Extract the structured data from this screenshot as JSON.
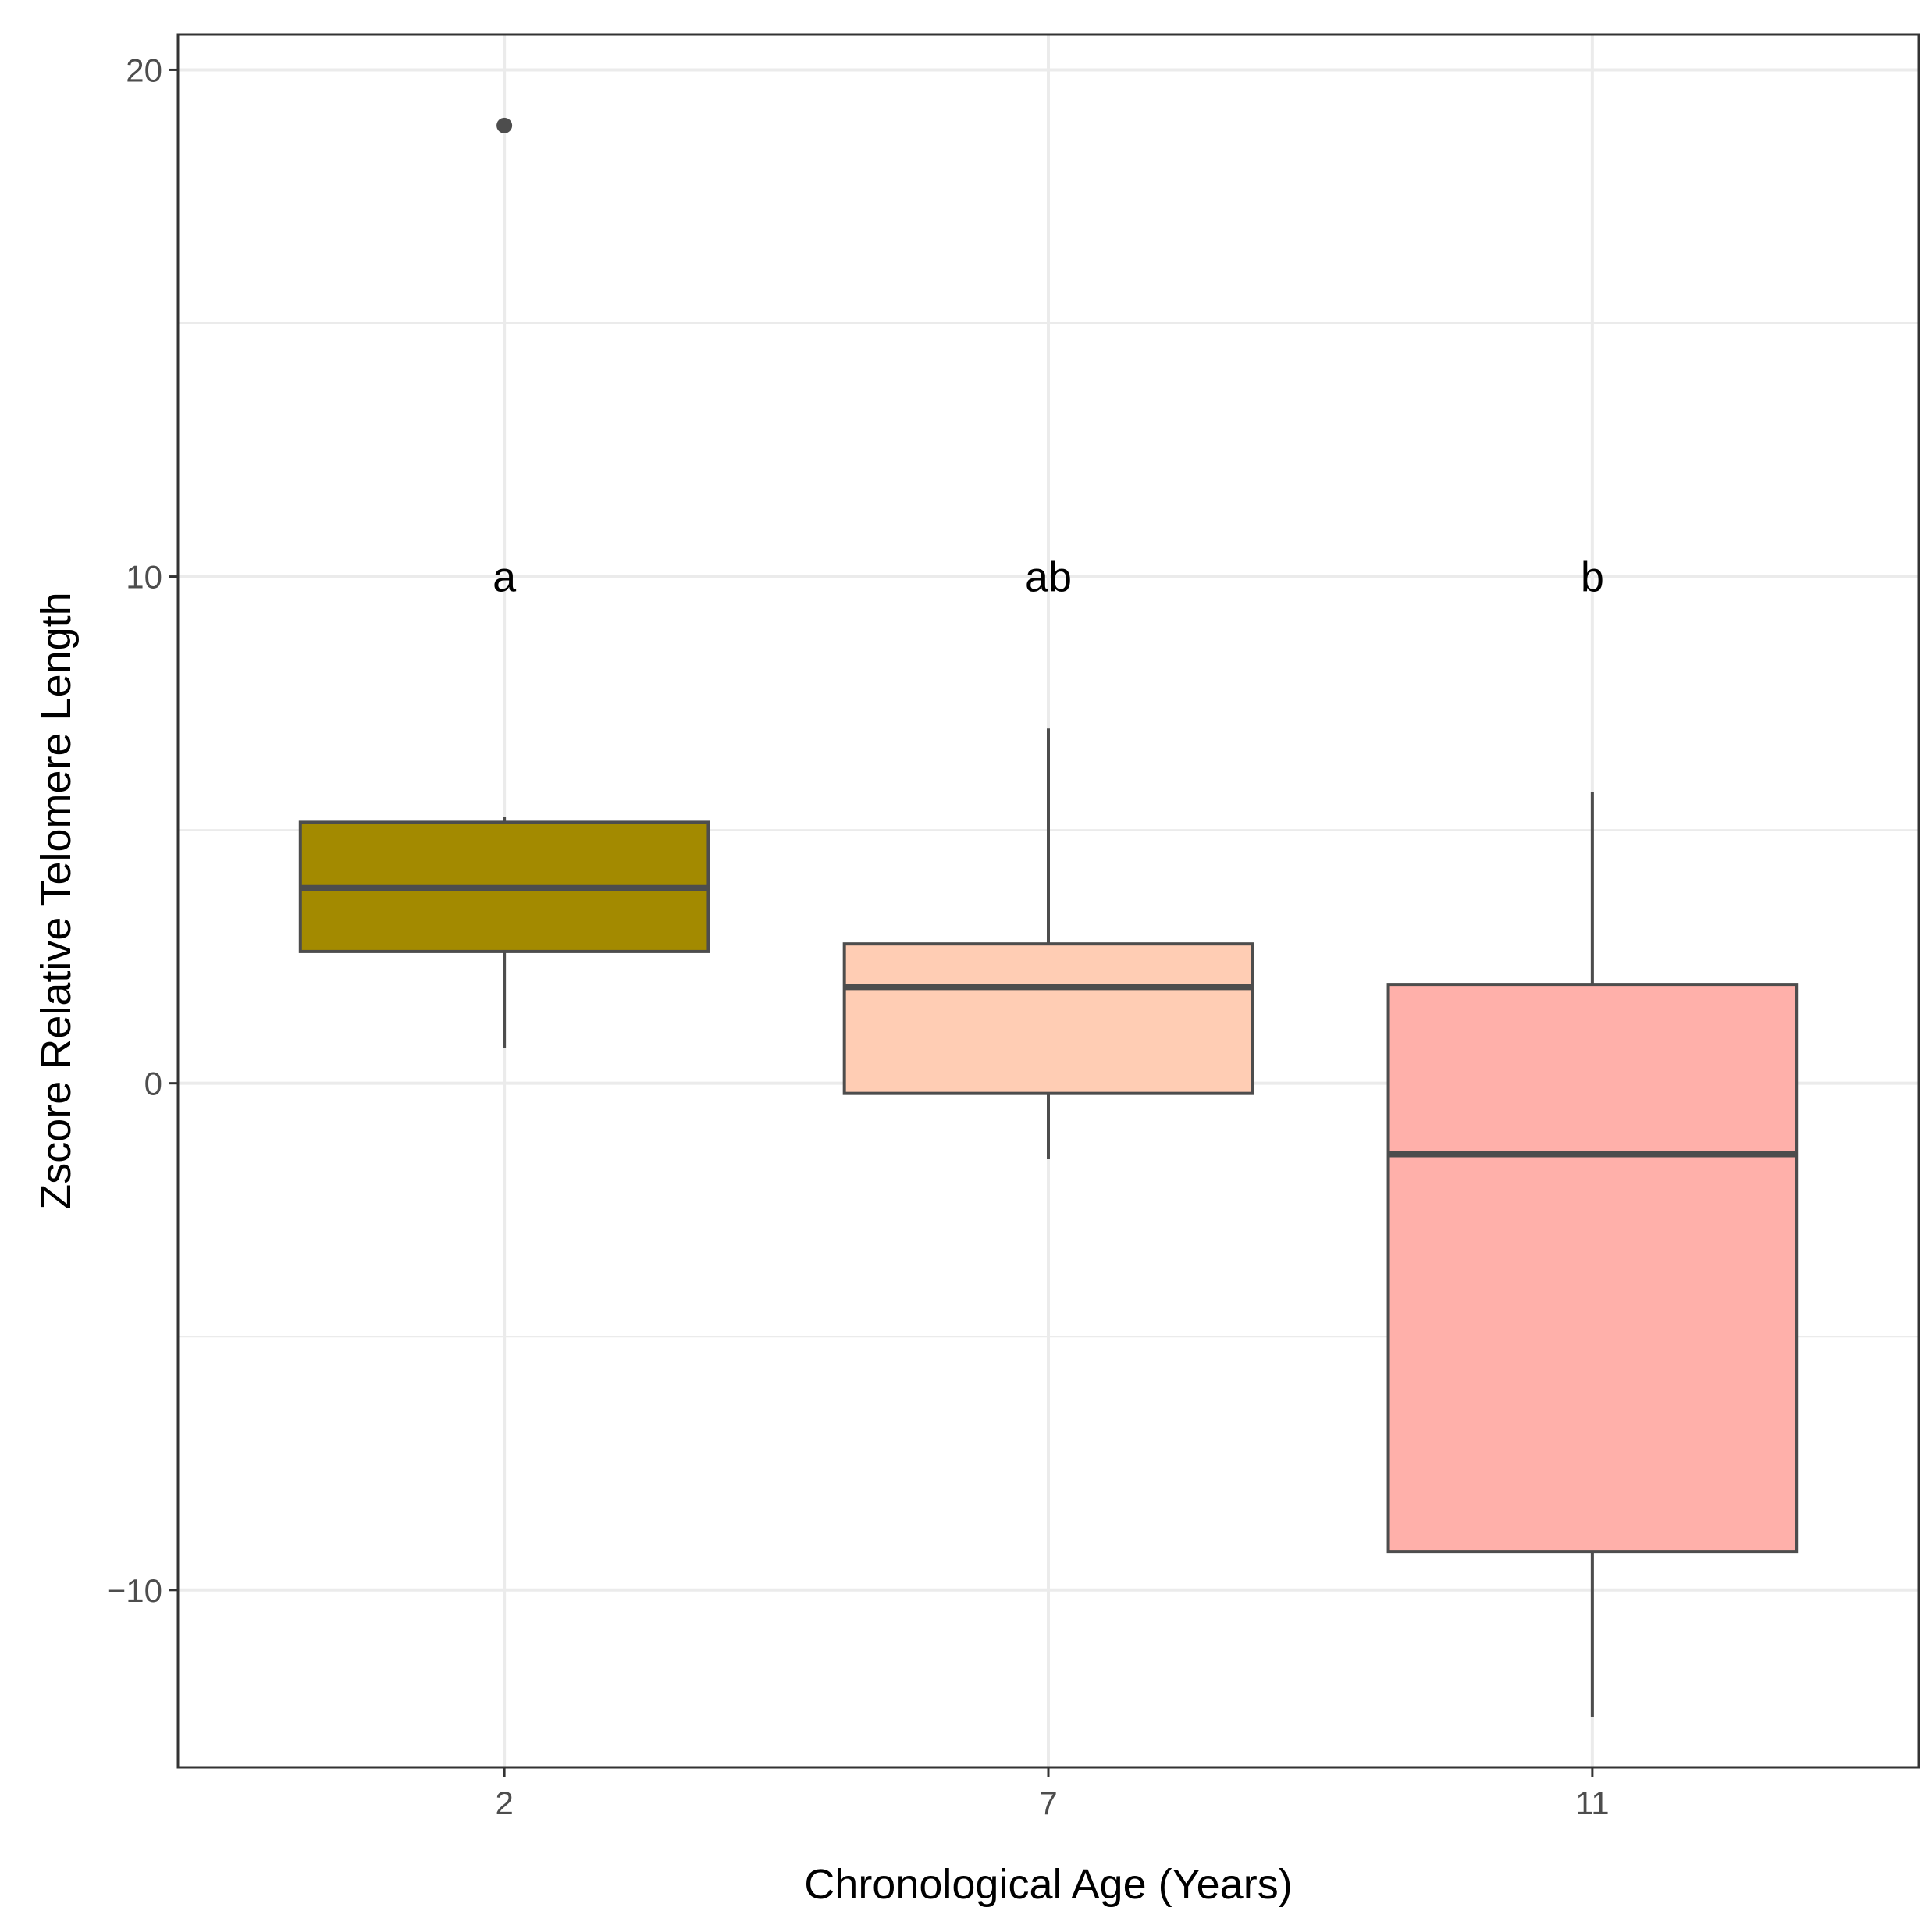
{
  "chart_data": {
    "type": "boxplot",
    "title": "",
    "xlabel": "Chronological Age (Years)",
    "ylabel": "Zscore Relative Telomere Length",
    "ylim": [
      -13.5,
      20.7
    ],
    "yticks": [
      -10,
      0,
      10,
      20
    ],
    "ytick_labels": [
      "−10",
      "0",
      "10",
      "20"
    ],
    "grid": true,
    "categories": [
      "2",
      "7",
      "11"
    ],
    "boxes": [
      {
        "category": "2",
        "whisker_low": 0.7,
        "q1": 2.6,
        "median": 3.85,
        "q3": 5.15,
        "whisker_high": 5.25,
        "outliers": [
          18.9
        ],
        "color": "#A38A00",
        "annotation": "a"
      },
      {
        "category": "7",
        "whisker_low": -1.5,
        "q1": -0.2,
        "median": 1.9,
        "q3": 2.75,
        "whisker_high": 7.0,
        "outliers": [],
        "color": "#FFCDB4",
        "annotation": "ab"
      },
      {
        "category": "11",
        "whisker_low": -12.5,
        "q1": -9.25,
        "median": -1.4,
        "q3": 1.95,
        "whisker_high": 5.75,
        "outliers": [],
        "color": "#FFB0AA",
        "annotation": "b"
      }
    ],
    "annotation_y": 10,
    "outline_color": "#4D4D4D",
    "grid_color": "#EBEBEB"
  }
}
